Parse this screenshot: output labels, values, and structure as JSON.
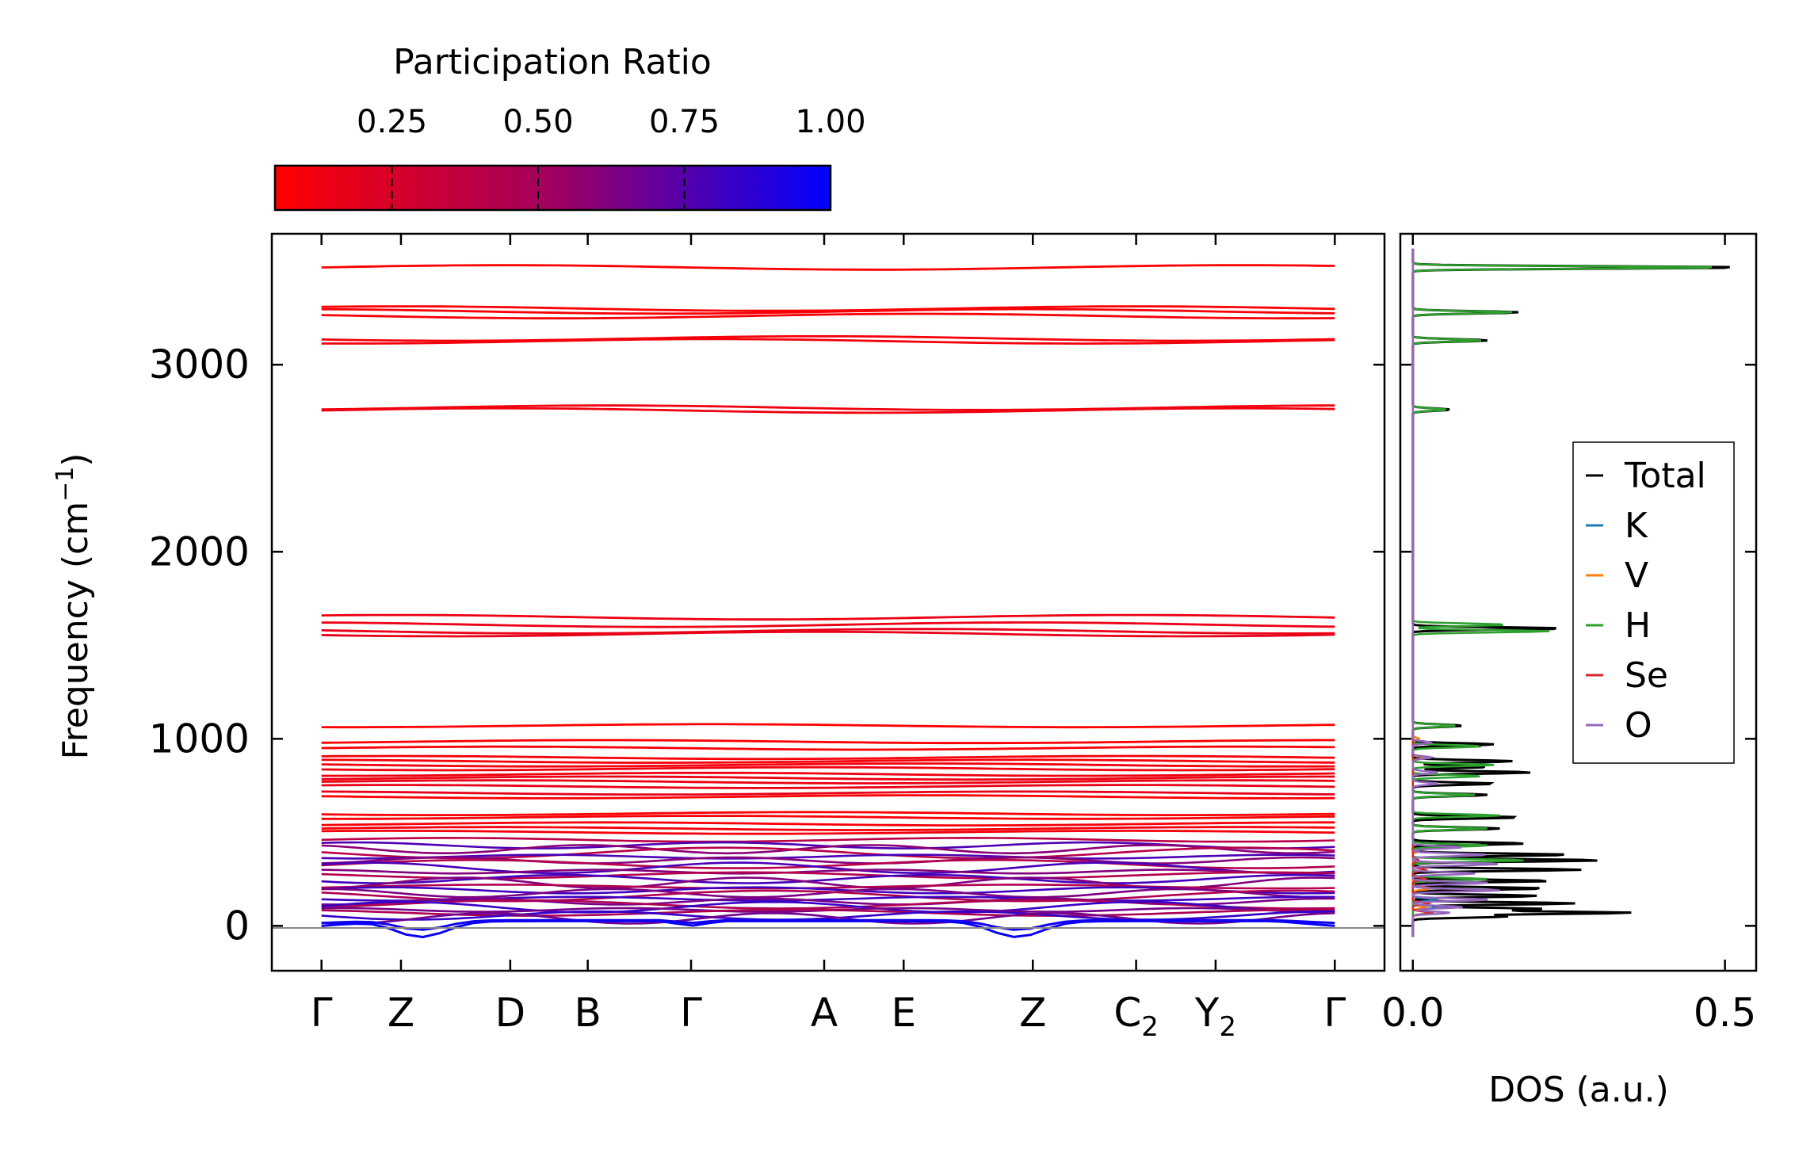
{
  "chart_data": [
    {
      "type": "line",
      "title": "",
      "xlabel": "",
      "ylabel": "Frequency (cm",
      "ylabel_sup": "−1",
      "ylabel_close": ")",
      "ylim": [
        -240,
        3700
      ],
      "yticks": [
        0,
        1000,
        2000,
        3000
      ],
      "ytick_labels": [
        "0",
        "1000",
        "2000",
        "3000"
      ],
      "path_points": [
        {
          "label": "Γ",
          "sub": "",
          "x": 0.0
        },
        {
          "label": "Z",
          "sub": "",
          "x": 0.4
        },
        {
          "label": "D",
          "sub": "",
          "x": 0.95
        },
        {
          "label": "B",
          "sub": "",
          "x": 1.34
        },
        {
          "label": "Γ",
          "sub": "",
          "x": 1.86
        },
        {
          "label": "A",
          "sub": "",
          "x": 2.53
        },
        {
          "label": "E",
          "sub": "",
          "x": 2.93
        },
        {
          "label": "Z",
          "sub": "",
          "x": 3.58
        },
        {
          "label": "C",
          "sub": "2",
          "x": 4.1
        },
        {
          "label": "Y",
          "sub": "2",
          "x": 4.5
        },
        {
          "label": "Γ",
          "sub": "",
          "x": 5.1
        }
      ],
      "xlim": [
        -0.25,
        5.35
      ],
      "high_bands_cm1": [
        3520,
        3300,
        3285,
        3260,
        3140,
        3125,
        2770,
        2755,
        1650,
        1610,
        1575,
        1560,
        1070,
        985,
        950,
        900,
        880,
        860,
        840,
        810,
        790,
        770,
        745,
        710,
        690,
        600,
        580,
        545,
        520,
        500
      ],
      "low_bands_cm1": [
        460,
        430,
        410,
        390,
        370,
        350,
        330,
        310,
        290,
        270,
        250,
        230,
        210,
        190,
        175,
        160,
        145,
        130,
        115,
        100,
        85,
        70,
        55,
        40
      ],
      "acoustic_dip_min_cm1": -60,
      "colormap": {
        "label": "Participation Ratio",
        "ticks": [
          "0.25",
          "0.50",
          "0.75",
          "1.00"
        ],
        "tick_values": [
          0.25,
          0.5,
          0.75,
          1.0
        ],
        "min": 0.05,
        "max": 1.0,
        "low_color": "#ff0000",
        "high_color": "#0000ff"
      }
    },
    {
      "type": "line",
      "title": "",
      "xlabel": "DOS (a.u.)",
      "ylabel": "",
      "xlim": [
        -0.02,
        0.55
      ],
      "xticks": [
        0.0,
        0.5
      ],
      "xtick_labels": [
        "0.0",
        "0.5"
      ],
      "ylim": [
        -240,
        3700
      ],
      "legend_position": "center-right",
      "series": [
        {
          "name": "Total",
          "color": "#000000",
          "peaks": [
            [
              3520,
              0.53
            ],
            [
              3280,
              0.17
            ],
            [
              3130,
              0.12
            ],
            [
              2760,
              0.06
            ],
            [
              1590,
              0.24
            ],
            [
              1070,
              0.08
            ],
            [
              970,
              0.13
            ],
            [
              880,
              0.16
            ],
            [
              850,
              0.12
            ],
            [
              820,
              0.19
            ],
            [
              760,
              0.13
            ],
            [
              700,
              0.12
            ],
            [
              580,
              0.17
            ],
            [
              520,
              0.14
            ],
            [
              440,
              0.18
            ],
            [
              380,
              0.25
            ],
            [
              350,
              0.3
            ],
            [
              300,
              0.27
            ],
            [
              240,
              0.22
            ],
            [
              200,
              0.21
            ],
            [
              160,
              0.2
            ],
            [
              120,
              0.26
            ],
            [
              90,
              0.21
            ],
            [
              70,
              0.35
            ],
            [
              50,
              0.15
            ]
          ]
        },
        {
          "name": "K",
          "color": "#1f77b4",
          "peaks": [
            [
              140,
              0.04
            ],
            [
              100,
              0.05
            ],
            [
              70,
              0.03
            ]
          ]
        },
        {
          "name": "V",
          "color": "#ff7f0e",
          "peaks": [
            [
              1000,
              0.01
            ],
            [
              900,
              0.02
            ],
            [
              400,
              0.01
            ],
            [
              200,
              0.03
            ],
            [
              100,
              0.02
            ]
          ]
        },
        {
          "name": "H",
          "color": "#2ca02c",
          "peaks": [
            [
              3520,
              0.5
            ],
            [
              3280,
              0.16
            ],
            [
              3130,
              0.11
            ],
            [
              2760,
              0.055
            ],
            [
              1610,
              0.15
            ],
            [
              1575,
              0.22
            ],
            [
              1070,
              0.07
            ],
            [
              960,
              0.11
            ],
            [
              860,
              0.13
            ],
            [
              800,
              0.11
            ],
            [
              700,
              0.1
            ],
            [
              590,
              0.14
            ],
            [
              520,
              0.12
            ],
            [
              430,
              0.12
            ],
            [
              350,
              0.18
            ],
            [
              250,
              0.12
            ]
          ]
        },
        {
          "name": "Se",
          "color": "#d62728",
          "peaks": [
            [
              350,
              0.01
            ],
            [
              300,
              0.02
            ],
            [
              250,
              0.02
            ],
            [
              120,
              0.025
            ],
            [
              70,
              0.03
            ]
          ]
        },
        {
          "name": "O",
          "color": "#9467bd",
          "peaks": [
            [
              980,
              0.03
            ],
            [
              900,
              0.03
            ],
            [
              820,
              0.04
            ],
            [
              760,
              0.04
            ],
            [
              420,
              0.08
            ],
            [
              380,
              0.12
            ],
            [
              330,
              0.14
            ],
            [
              280,
              0.1
            ],
            [
              230,
              0.12
            ],
            [
              190,
              0.14
            ],
            [
              140,
              0.12
            ],
            [
              100,
              0.08
            ],
            [
              70,
              0.06
            ]
          ]
        }
      ]
    }
  ]
}
